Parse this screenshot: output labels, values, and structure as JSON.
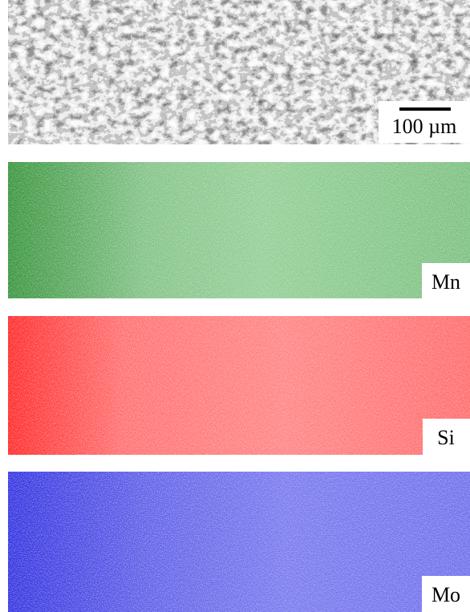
{
  "panels": [
    {
      "label": "100 µm"
    },
    {
      "label": "Mn"
    },
    {
      "label": "Si"
    },
    {
      "label": "Mo"
    }
  ]
}
